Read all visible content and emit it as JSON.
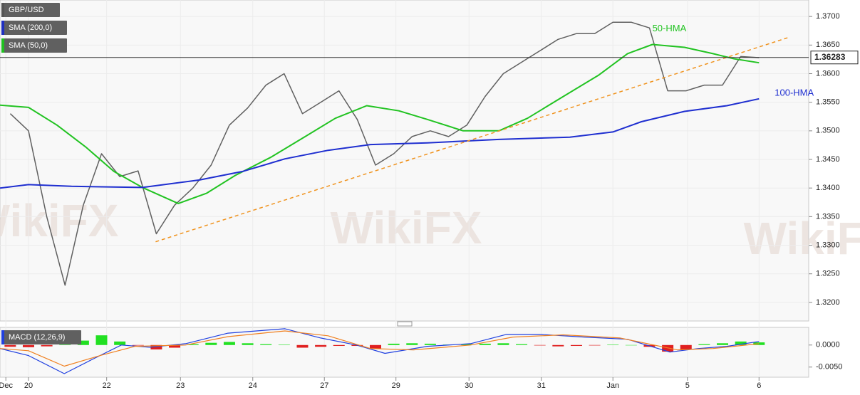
{
  "chart_data": [
    {
      "type": "line",
      "watermark": "WikiFX",
      "legend": [
        {
          "text": "GBP/USD",
          "color": "#555555"
        },
        {
          "text": "SMA (200,0)",
          "color": "#2030c0"
        },
        {
          "text": "SMA (50,0)",
          "color": "#20c020"
        }
      ],
      "xlim": [
        -0.39,
        10.68
      ],
      "xticks": [
        {
          "value": -0.31,
          "label": "Dec"
        },
        {
          "value": 0,
          "label": "20"
        },
        {
          "value": 1.07,
          "label": "22"
        },
        {
          "value": 2.08,
          "label": "23"
        },
        {
          "value": 3.07,
          "label": "24"
        },
        {
          "value": 4.05,
          "label": "27"
        },
        {
          "value": 5.03,
          "label": "29"
        },
        {
          "value": 6.03,
          "label": "30"
        },
        {
          "value": 7.02,
          "label": "31"
        },
        {
          "value": 8.0,
          "label": "Jan"
        },
        {
          "value": 9.02,
          "label": "5"
        },
        {
          "value": 10.0,
          "label": "6"
        }
      ],
      "ylim": [
        1.31675,
        1.37288
      ],
      "yticks": [
        {
          "value": 1.32,
          "label": "1.3200"
        },
        {
          "value": 1.325,
          "label": "1.3250"
        },
        {
          "value": 1.33,
          "label": "1.3300"
        },
        {
          "value": 1.335,
          "label": "1.3350"
        },
        {
          "value": 1.34,
          "label": "1.3400"
        },
        {
          "value": 1.345,
          "label": "1.3450"
        },
        {
          "value": 1.35,
          "label": "1.3500"
        },
        {
          "value": 1.355,
          "label": "1.3550"
        },
        {
          "value": 1.36,
          "label": "1.3600"
        },
        {
          "value": 1.365,
          "label": "1.3650"
        },
        {
          "value": 1.37,
          "label": "1.3700"
        }
      ],
      "grid": true,
      "last_price": {
        "value": 1.36283,
        "label": "1.36283"
      },
      "series": [
        {
          "color": "#606060",
          "width": 1.5,
          "x": [
            -0.25,
            0,
            0.25,
            0.5,
            0.75,
            1.0,
            1.25,
            1.5,
            1.75,
            2.0,
            2.25,
            2.5,
            2.75,
            3.0,
            3.25,
            3.5,
            3.75,
            4.0,
            4.25,
            4.5,
            4.75,
            5.0,
            5.25,
            5.5,
            5.75,
            6.0,
            6.25,
            6.5,
            6.75,
            7.0,
            7.25,
            7.5,
            7.75,
            8.0,
            8.25,
            8.5,
            8.75,
            9.0,
            9.25,
            9.5,
            9.75,
            10.0
          ],
          "values": [
            1.353,
            1.35,
            1.335,
            1.323,
            1.337,
            1.346,
            1.342,
            1.343,
            1.332,
            1.337,
            1.34,
            1.344,
            1.351,
            1.354,
            1.358,
            1.36,
            1.353,
            1.355,
            1.357,
            1.352,
            1.344,
            1.346,
            1.349,
            1.35,
            1.349,
            1.351,
            1.356,
            1.36,
            1.362,
            1.364,
            1.366,
            1.367,
            1.367,
            1.369,
            1.369,
            1.368,
            1.357,
            1.357,
            1.358,
            1.358,
            1.363,
            1.3628
          ]
        },
        {
          "name": "50-HMA",
          "color": "#22c322",
          "width": 2,
          "x": [
            -0.39,
            0,
            0.39,
            0.78,
            1.17,
            1.56,
            2.05,
            2.44,
            2.83,
            3.32,
            3.8,
            4.2,
            4.63,
            5.07,
            5.46,
            5.95,
            6.44,
            6.83,
            7.32,
            7.8,
            8.2,
            8.54,
            8.98,
            9.37,
            9.66,
            10.0
          ],
          "values": [
            1.3545,
            1.3541,
            1.351,
            1.3472,
            1.3429,
            1.3401,
            1.3373,
            1.3391,
            1.3422,
            1.3454,
            1.3491,
            1.3522,
            1.3544,
            1.3535,
            1.352,
            1.35,
            1.35,
            1.3522,
            1.356,
            1.3597,
            1.3635,
            1.3651,
            1.3646,
            1.3635,
            1.3626,
            1.3619
          ]
        },
        {
          "name": "100-HMA",
          "color": "#1f2fd0",
          "width": 2,
          "x": [
            -0.39,
            0,
            0.59,
            1.56,
            2.34,
            2.93,
            3.51,
            4.1,
            4.68,
            5.46,
            6.44,
            7.41,
            8.0,
            8.39,
            8.98,
            9.56,
            10.0
          ],
          "values": [
            1.34,
            1.3406,
            1.3403,
            1.3401,
            1.3414,
            1.3429,
            1.3451,
            1.3466,
            1.3476,
            1.3479,
            1.3485,
            1.3489,
            1.3498,
            1.3516,
            1.3534,
            1.3544,
            1.3556
          ]
        },
        {
          "color": "#f0931e",
          "width": 1.5,
          "dash": true,
          "x": [
            1.74,
            10.42
          ],
          "values": [
            1.3306,
            1.3664
          ]
        }
      ]
    },
    {
      "type": "macd",
      "legend": [
        {
          "text": "MACD (12,26,9)",
          "color": "#2040e0"
        }
      ],
      "xlim": [
        -0.39,
        10.68
      ],
      "ylim": [
        -0.0073,
        0.004
      ],
      "yticks": [
        {
          "value": 0,
          "label": "0.0000"
        },
        {
          "value": -0.005,
          "label": "-0.0050"
        }
      ],
      "histogram": {
        "up_color": "#22e022",
        "down_color": "#e02020",
        "x": [
          -0.25,
          0,
          0.25,
          0.5,
          0.75,
          1.0,
          1.25,
          1.5,
          1.75,
          2.0,
          2.25,
          2.5,
          2.75,
          3.0,
          3.25,
          3.5,
          3.75,
          4.0,
          4.25,
          4.5,
          4.75,
          5.0,
          5.25,
          5.5,
          5.75,
          6.0,
          6.25,
          6.5,
          6.75,
          7.0,
          7.25,
          7.5,
          7.75,
          8.0,
          8.25,
          8.5,
          8.75,
          9.0,
          9.25,
          9.5,
          9.75,
          10.0
        ],
        "values": [
          -0.0004,
          -0.0005,
          -0.0003,
          0.0001,
          0.001,
          0.0022,
          0.0008,
          -0.0001,
          -0.001,
          -0.0006,
          0.0002,
          0.0005,
          0.0007,
          0.0004,
          0.0002,
          0.0001,
          -0.0006,
          -0.0004,
          -0.0002,
          -0.0002,
          -0.0008,
          0.0003,
          0.0004,
          0.0003,
          0.0001,
          0.0002,
          0.0003,
          0.0004,
          0.0002,
          -0.0001,
          -0.0003,
          -0.0002,
          -0.0001,
          0.0001,
          0,
          -0.0004,
          -0.0015,
          -0.001,
          0.0002,
          0.0004,
          0.0008,
          0.0006
        ]
      },
      "series": [
        {
          "color": "#2040e0",
          "width": 1.2,
          "x": [
            -0.39,
            0,
            0.49,
            0.88,
            1.27,
            1.66,
            2.15,
            2.73,
            3.51,
            4.0,
            4.49,
            4.88,
            5.46,
            6.05,
            6.54,
            7.02,
            7.61,
            8.2,
            8.78,
            9.17,
            9.56,
            10.0
          ],
          "values": [
            -0.0008,
            -0.0024,
            -0.0065,
            -0.0032,
            0,
            -0.0005,
            0.0003,
            0.0027,
            0.0037,
            0.0016,
            0,
            -0.0019,
            -0.0003,
            0.0003,
            0.0024,
            0.0024,
            0.0018,
            0.0013,
            -0.0016,
            -0.0008,
            -0.0003,
            0.0008
          ]
        },
        {
          "color": "#f08020",
          "width": 1.2,
          "x": [
            -0.39,
            0,
            0.49,
            0.98,
            1.46,
            2.15,
            2.73,
            3.51,
            4.1,
            4.68,
            5.27,
            6.05,
            6.63,
            7.32,
            8.1,
            8.88,
            9.37,
            10.0
          ],
          "values": [
            -0.0008,
            -0.0013,
            -0.0048,
            -0.0024,
            -0.0003,
            0,
            0.0019,
            0.0032,
            0.0021,
            -0.0008,
            -0.0011,
            0,
            0.0018,
            0.0023,
            0.0016,
            -0.0011,
            -0.0008,
            0.0003
          ]
        }
      ]
    }
  ]
}
